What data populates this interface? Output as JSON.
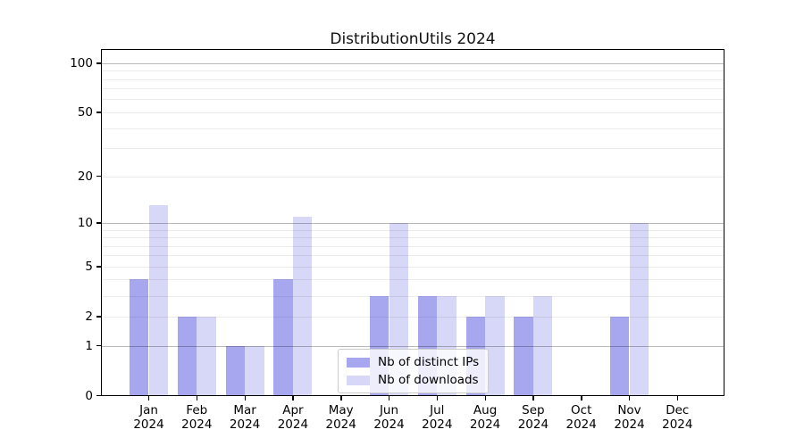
{
  "chart_data": {
    "type": "bar",
    "title": "DistributionUtils 2024",
    "x_year": "2024",
    "categories": [
      "Jan",
      "Feb",
      "Mar",
      "Apr",
      "May",
      "Jun",
      "Jul",
      "Aug",
      "Sep",
      "Oct",
      "Nov",
      "Dec"
    ],
    "series": [
      {
        "name": "Nb of distinct IPs",
        "color": "#a7a7f0",
        "values": [
          4,
          2,
          1,
          4,
          0,
          3,
          3,
          2,
          2,
          0,
          2,
          0
        ]
      },
      {
        "name": "Nb of downloads",
        "color": "#d7d7f8",
        "values": [
          13,
          2,
          1,
          11,
          0,
          10,
          3,
          3,
          3,
          0,
          10,
          0
        ]
      }
    ],
    "y_axis": {
      "scale": "log1p",
      "tick_values": [
        0,
        1,
        2,
        5,
        10,
        20,
        50,
        100
      ],
      "major_gridlines": [
        1,
        10,
        100
      ],
      "minor_gridlines": [
        2,
        3,
        4,
        5,
        6,
        7,
        8,
        9,
        20,
        30,
        40,
        50,
        60,
        70,
        80,
        90
      ],
      "ylim": [
        0,
        119
      ]
    },
    "grid": "on",
    "grid_above_bars": true,
    "legend_position": "lower center inside"
  }
}
